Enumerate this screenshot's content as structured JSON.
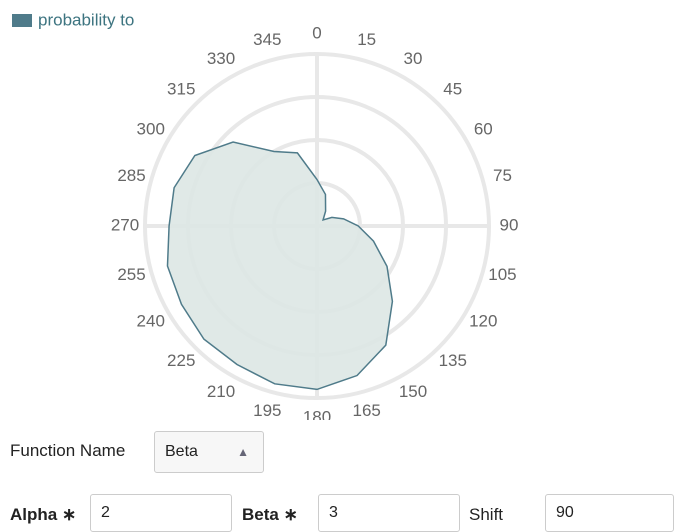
{
  "chart_data": {
    "type": "polar_area",
    "legend": "probability to",
    "color": "#4f7b8a",
    "fill": "#dde7e4",
    "theta": [
      0,
      15,
      30,
      45,
      60,
      75,
      90,
      105,
      120,
      135,
      150,
      165,
      180,
      195,
      210,
      225,
      240,
      255,
      270,
      285,
      300,
      315,
      330,
      345
    ],
    "angle_ticks": [
      0,
      15,
      30,
      45,
      60,
      75,
      90,
      105,
      120,
      135,
      150,
      165,
      180,
      195,
      210,
      225,
      240,
      255,
      270,
      285,
      300,
      315,
      330,
      345
    ],
    "rlim": [
      0,
      1
    ],
    "rgrid": [
      0.25,
      0.5,
      0.75,
      1
    ],
    "series": [
      {
        "name": "probability to",
        "color": "#4f7b8a",
        "values": [
          0.27,
          0.19,
          0.1,
          0.05,
          0.1,
          0.16,
          0.24,
          0.34,
          0.47,
          0.62,
          0.8,
          0.9,
          0.95,
          0.95,
          0.93,
          0.93,
          0.91,
          0.9,
          0.86,
          0.86,
          0.82,
          0.69,
          0.5,
          0.44
        ]
      }
    ]
  },
  "form": {
    "function_name_label": "Function Name",
    "function_name_value": "Beta",
    "fields": [
      {
        "label": "Alpha ∗",
        "value": "2"
      },
      {
        "label": "Beta ∗",
        "value": "3"
      },
      {
        "label": "Shift",
        "value": "90"
      }
    ]
  }
}
